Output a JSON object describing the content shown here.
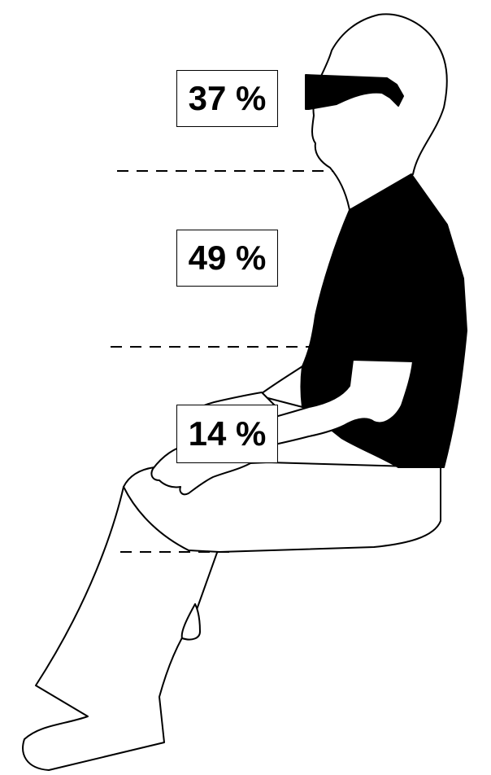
{
  "segments": [
    {
      "id": "head",
      "label": "37 %",
      "value": 37
    },
    {
      "id": "torso",
      "label": "49 %",
      "value": 49
    },
    {
      "id": "thigh",
      "label": "14 %",
      "value": 14
    }
  ],
  "colors": {
    "ink": "#000000",
    "paper": "#ffffff"
  }
}
